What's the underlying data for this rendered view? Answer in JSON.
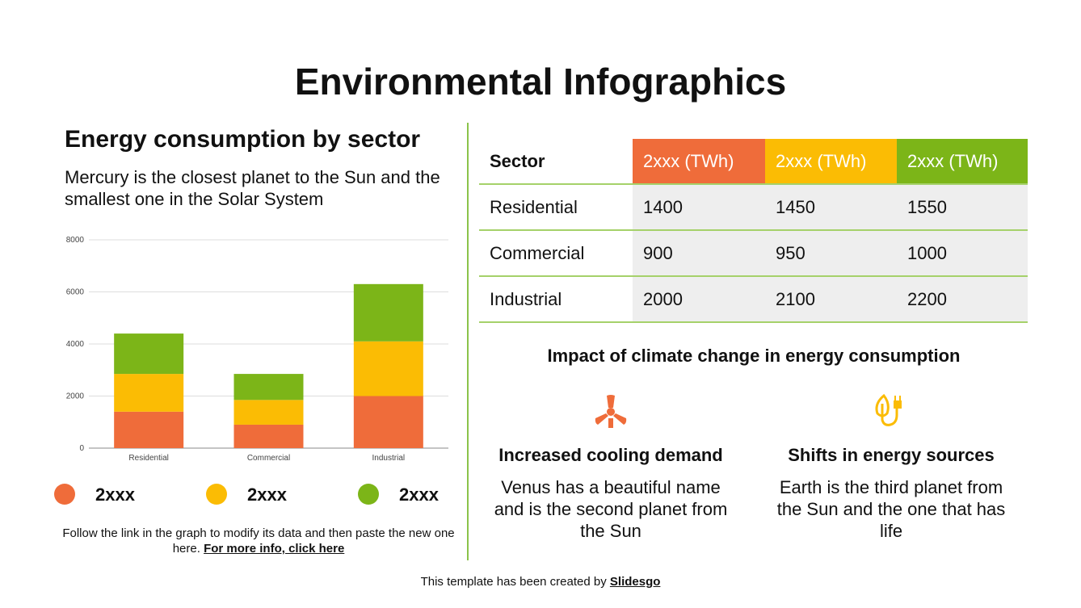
{
  "title": "Environmental Infographics",
  "left": {
    "heading": "Energy consumption by sector",
    "subtitle": "Mercury is the closest planet to the Sun and the smallest one in the Solar System",
    "note": "Follow the link in the graph to modify its data and then paste the new one here.",
    "link": "For more info, click here"
  },
  "chart_data": {
    "type": "stacked_bar",
    "categories": [
      "Residential",
      "Commercial",
      "Industrial"
    ],
    "series": [
      {
        "name": "2xxx",
        "color": "#ef6c3a",
        "values": [
          1400,
          900,
          2000
        ]
      },
      {
        "name": "2xxx",
        "color": "#fbbc04",
        "values": [
          1450,
          950,
          2100
        ]
      },
      {
        "name": "2xxx",
        "color": "#7cb518",
        "values": [
          1550,
          1000,
          2200
        ]
      }
    ],
    "ylim": [
      0,
      8000
    ],
    "yticks": [
      0,
      2000,
      4000,
      6000,
      8000
    ],
    "grid": true
  },
  "table": {
    "header": [
      "Sector",
      "2xxx (TWh)",
      "2xxx (TWh)",
      "2xxx (TWh)"
    ],
    "header_colors": [
      "#ffffff",
      "#ef6c3a",
      "#fbbc04",
      "#7cb518"
    ],
    "rows": [
      [
        "Residential",
        1400,
        1450,
        1550
      ],
      [
        "Commercial",
        900,
        950,
        1000
      ],
      [
        "Industrial",
        2000,
        2100,
        2200
      ]
    ]
  },
  "impact": {
    "heading": "Impact of climate change in energy consumption",
    "items": [
      {
        "title": "Increased cooling demand",
        "text": "Venus has a beautiful name and is the second planet from the Sun"
      },
      {
        "title": "Shifts in energy sources",
        "text": "Earth is the third planet from the Sun and the one that has life"
      }
    ]
  },
  "footer": {
    "text": "This template has been created by",
    "link": "Slidesgo"
  }
}
